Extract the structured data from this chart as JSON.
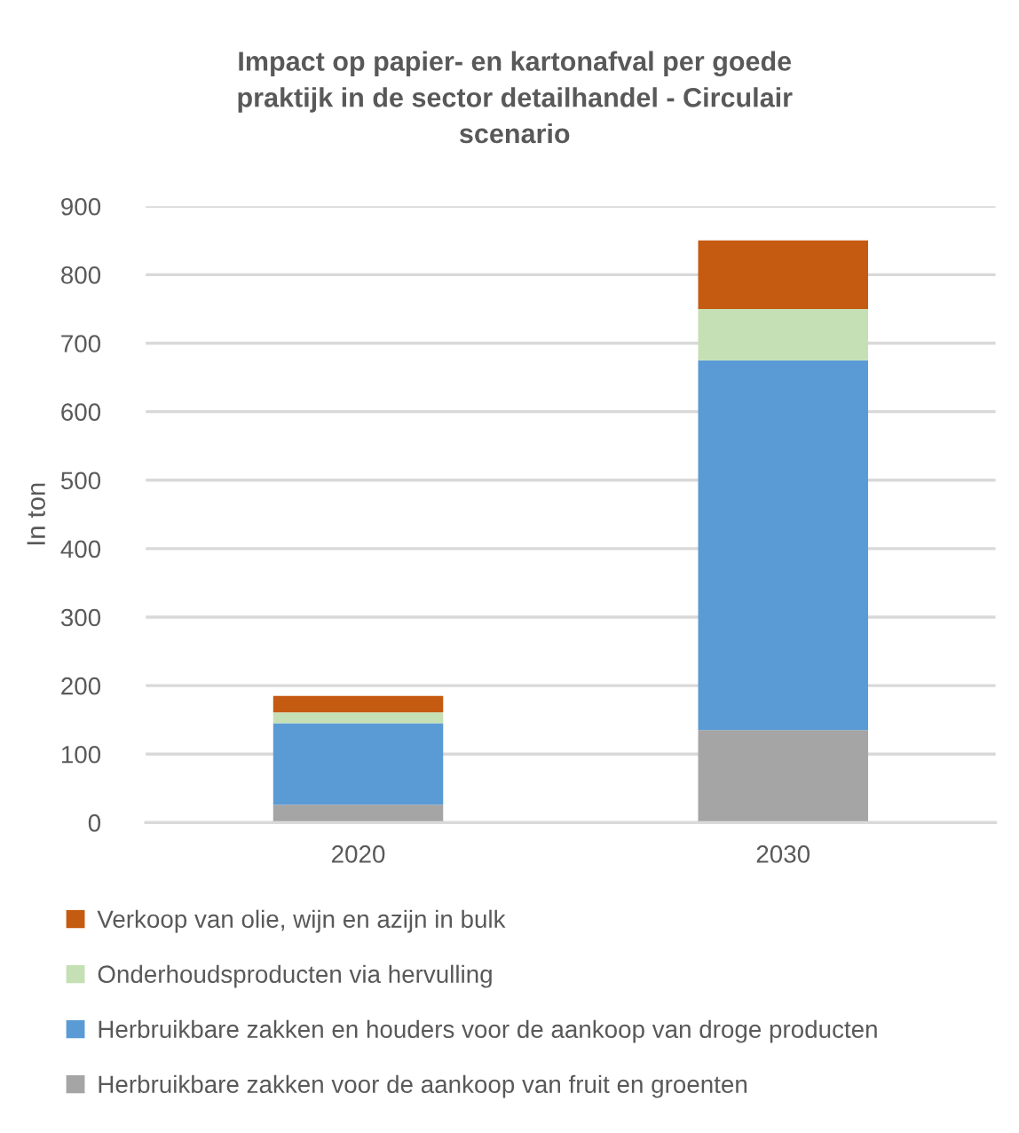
{
  "chart_data": {
    "type": "bar",
    "title": "Impact op papier- en kartonafval per goede\npraktijk in de sector detailhandel - Circulair\nscenario",
    "ylabel": "In ton",
    "categories": [
      "2020",
      "2030"
    ],
    "stacked": true,
    "series": [
      {
        "name": "Herbruikbare zakken voor de aankoop van fruit en groenten",
        "color": "#a5a5a5",
        "values": [
          26,
          135
        ]
      },
      {
        "name": "Herbruikbare zakken en houders voor de aankoop van droge producten",
        "color": "#5b9bd5",
        "values": [
          119,
          540
        ]
      },
      {
        "name": "Onderhoudsproducten via hervulling",
        "color": "#c5e0b4",
        "values": [
          16,
          75
        ]
      },
      {
        "name": "Verkoop van olie, wijn en azijn in bulk",
        "color": "#c55a11",
        "values": [
          24,
          100
        ]
      }
    ],
    "ylim": [
      0,
      900
    ],
    "yticks": [
      0,
      100,
      200,
      300,
      400,
      500,
      600,
      700,
      800,
      900
    ],
    "grid": "y",
    "legend": "bottom"
  }
}
